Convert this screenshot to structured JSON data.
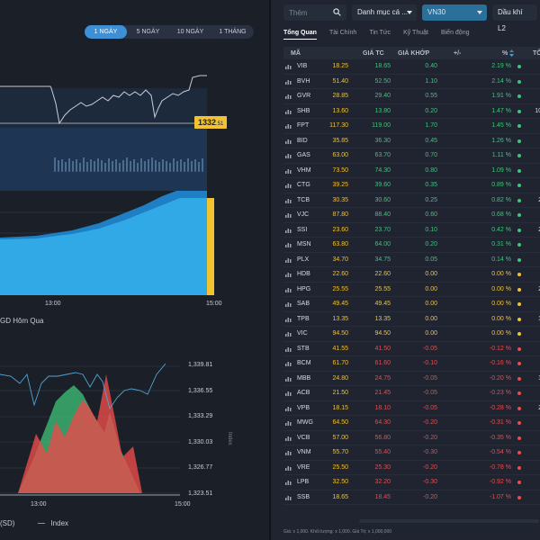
{
  "left": {
    "ranges": [
      {
        "label": "1 NGÀY",
        "active": true
      },
      {
        "label": "5 NGÀY",
        "active": false
      },
      {
        "label": "10 NGÀY",
        "active": false
      },
      {
        "label": "1 THÁNG",
        "active": false
      }
    ],
    "price_tag": {
      "main": "1332",
      "frac": ".51"
    },
    "xaxis_top": {
      "t13": "13:00",
      "t15": "15:00"
    },
    "prev_session": "GD Hôm Qua",
    "bottom_y_ticks": [
      "1,339.81",
      "1,336.55",
      "1,333.29",
      "1,330.03",
      "1,326.77",
      "1,323.51"
    ],
    "bottom_x_ticks": {
      "t13": "13:00",
      "t15": "15:00"
    },
    "bottom_vertical_label": "Index",
    "legend_left": "(SD)",
    "legend_index": "Index",
    "colors": {
      "line": "#4ea4d8",
      "area": "#32a9e7",
      "up": "#3fc47a",
      "down": "#ea4b4b",
      "ref": "#f2c231"
    }
  },
  "right": {
    "search_placeholder": "Thêm",
    "dropdown_category": "Danh mục cá ...",
    "dropdown_index": "VN30",
    "dropdown_l2": "Dầu khí L2",
    "tabs": [
      {
        "label": "Tổng Quan",
        "active": true
      },
      {
        "label": "Tài Chính",
        "active": false
      },
      {
        "label": "Tin Tức",
        "active": false
      },
      {
        "label": "Kỹ Thuật",
        "active": false
      },
      {
        "label": "Biến động",
        "active": false
      }
    ],
    "headers": {
      "ma": "MÃ",
      "tc": "GIÁ TC",
      "gk": "GIÁ KHỚP",
      "pm": "+/-",
      "pct": "%",
      "tong": "TỔ"
    },
    "rows": [
      {
        "sym": "VIB",
        "tc": "18.25",
        "gk": "18.65",
        "pm": "0.40",
        "pct": "2.19 %",
        "ex": "",
        "dir": "up"
      },
      {
        "sym": "BVH",
        "tc": "51.40",
        "gk": "52.50",
        "pm": "1.10",
        "pct": "2.14 %",
        "ex": "",
        "dir": "up"
      },
      {
        "sym": "GVR",
        "tc": "28.85",
        "gk": "29.40",
        "pm": "0.55",
        "pct": "1.91 %",
        "ex": "",
        "dir": "up"
      },
      {
        "sym": "SHB",
        "tc": "13.60",
        "gk": "13.80",
        "pm": "0.20",
        "pct": "1.47 %",
        "ex": "10",
        "dir": "up"
      },
      {
        "sym": "FPT",
        "tc": "117.30",
        "gk": "119.00",
        "pm": "1.70",
        "pct": "1.45 %",
        "ex": "",
        "dir": "up"
      },
      {
        "sym": "BID",
        "tc": "35.85",
        "gk": "36.30",
        "pm": "0.45",
        "pct": "1.26 %",
        "ex": "",
        "dir": "up"
      },
      {
        "sym": "GAS",
        "tc": "63.00",
        "gk": "63.70",
        "pm": "0.70",
        "pct": "1.11 %",
        "ex": "",
        "dir": "up"
      },
      {
        "sym": "VHM",
        "tc": "73.50",
        "gk": "74.30",
        "pm": "0.80",
        "pct": "1.09 %",
        "ex": "",
        "dir": "up"
      },
      {
        "sym": "CTG",
        "tc": "39.25",
        "gk": "39.60",
        "pm": "0.35",
        "pct": "0.89 %",
        "ex": "",
        "dir": "up"
      },
      {
        "sym": "TCB",
        "tc": "30.35",
        "gk": "30.60",
        "pm": "0.25",
        "pct": "0.82 %",
        "ex": "2",
        "dir": "up"
      },
      {
        "sym": "VJC",
        "tc": "87.80",
        "gk": "88.40",
        "pm": "0.60",
        "pct": "0.68 %",
        "ex": "",
        "dir": "up"
      },
      {
        "sym": "SSI",
        "tc": "23.60",
        "gk": "23.70",
        "pm": "0.10",
        "pct": "0.42 %",
        "ex": "2",
        "dir": "up"
      },
      {
        "sym": "MSN",
        "tc": "63.80",
        "gk": "64.00",
        "pm": "0.20",
        "pct": "0.31 %",
        "ex": "",
        "dir": "up"
      },
      {
        "sym": "PLX",
        "tc": "34.70",
        "gk": "34.75",
        "pm": "0.05",
        "pct": "0.14 %",
        "ex": "",
        "dir": "up"
      },
      {
        "sym": "HDB",
        "tc": "22.60",
        "gk": "22.60",
        "pm": "0.00",
        "pct": "0.00 %",
        "ex": "",
        "dir": "ref"
      },
      {
        "sym": "HPG",
        "tc": "25.55",
        "gk": "25.55",
        "pm": "0.00",
        "pct": "0.00 %",
        "ex": "2",
        "dir": "ref"
      },
      {
        "sym": "SAB",
        "tc": "49.45",
        "gk": "49.45",
        "pm": "0.00",
        "pct": "0.00 %",
        "ex": "",
        "dir": "ref"
      },
      {
        "sym": "TPB",
        "tc": "13.35",
        "gk": "13.35",
        "pm": "0.00",
        "pct": "0.00 %",
        "ex": "1",
        "dir": "ref"
      },
      {
        "sym": "VIC",
        "tc": "94.50",
        "gk": "94.50",
        "pm": "0.00",
        "pct": "0.00 %",
        "ex": "",
        "dir": "ref"
      },
      {
        "sym": "STB",
        "tc": "41.55",
        "gk": "41.50",
        "pm": "-0.05",
        "pct": "-0.12 %",
        "ex": "",
        "dir": "down"
      },
      {
        "sym": "BCM",
        "tc": "61.70",
        "gk": "61.60",
        "pm": "-0.10",
        "pct": "-0.16 %",
        "ex": "",
        "dir": "down"
      },
      {
        "sym": "MBB",
        "tc": "24.80",
        "gk": "24.75",
        "pm": "-0.05",
        "pct": "-0.20 %",
        "ex": "1",
        "dir": "down"
      },
      {
        "sym": "ACB",
        "tc": "21.50",
        "gk": "21.45",
        "pm": "-0.05",
        "pct": "-0.23 %",
        "ex": "",
        "dir": "down"
      },
      {
        "sym": "VPB",
        "tc": "18.15",
        "gk": "18.10",
        "pm": "-0.05",
        "pct": "-0.28 %",
        "ex": "2",
        "dir": "down"
      },
      {
        "sym": "MWG",
        "tc": "64.50",
        "gk": "64.30",
        "pm": "-0.20",
        "pct": "-0.31 %",
        "ex": "",
        "dir": "down"
      },
      {
        "sym": "VCB",
        "tc": "57.00",
        "gk": "56.80",
        "pm": "-0.20",
        "pct": "-0.35 %",
        "ex": "",
        "dir": "down"
      },
      {
        "sym": "VNM",
        "tc": "55.70",
        "gk": "55.40",
        "pm": "-0.30",
        "pct": "-0.54 %",
        "ex": "",
        "dir": "down"
      },
      {
        "sym": "VRE",
        "tc": "25.50",
        "gk": "25.30",
        "pm": "-0.20",
        "pct": "-0.78 %",
        "ex": "",
        "dir": "down"
      },
      {
        "sym": "LPB",
        "tc": "32.50",
        "gk": "32.20",
        "pm": "-0.30",
        "pct": "-0.92 %",
        "ex": "",
        "dir": "down"
      },
      {
        "sym": "SSB",
        "tc": "18.65",
        "gk": "18.45",
        "pm": "-0.20",
        "pct": "-1.07 %",
        "ex": "",
        "dir": "down"
      }
    ],
    "footnote": "Giá: x 1,000. Khối lượng: x 1,000. Giá Trị: x 1,000,000"
  }
}
